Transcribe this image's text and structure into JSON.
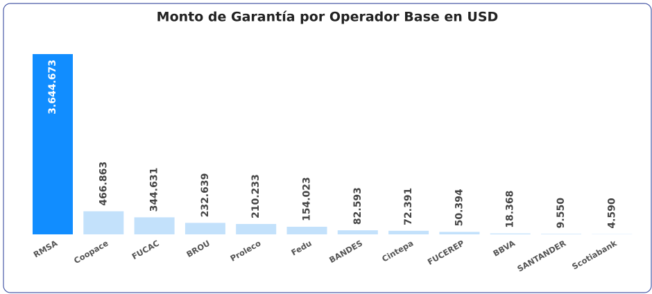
{
  "chart_data": {
    "type": "bar",
    "title": "Monto de Garantía por Operador Base en USD",
    "categories": [
      "RMSA",
      "Coopace",
      "FUCAC",
      "BROU",
      "Proleco",
      "Fedu",
      "BANDES",
      "Cintepa",
      "FUCEREP",
      "BBVA",
      "SANTANDER",
      "Scotiabank"
    ],
    "values": [
      3644673,
      466863,
      344631,
      232639,
      210233,
      154023,
      82593,
      72391,
      50394,
      18368,
      9550,
      4590
    ],
    "value_labels": [
      "3.644.673",
      "466.863",
      "344.631",
      "232.639",
      "210.233",
      "154.023",
      "82.593",
      "72.391",
      "50.394",
      "18.368",
      "9.550",
      "4.590"
    ],
    "colors": [
      "#118dff",
      "#c3e1fb",
      "#c3e1fb",
      "#c3e1fb",
      "#c3e1fb",
      "#c3e1fb",
      "#c3e1fb",
      "#c3e1fb",
      "#c3e1fb",
      "#c3e1fb",
      "#c3e1fb",
      "#c3e1fb"
    ]
  }
}
